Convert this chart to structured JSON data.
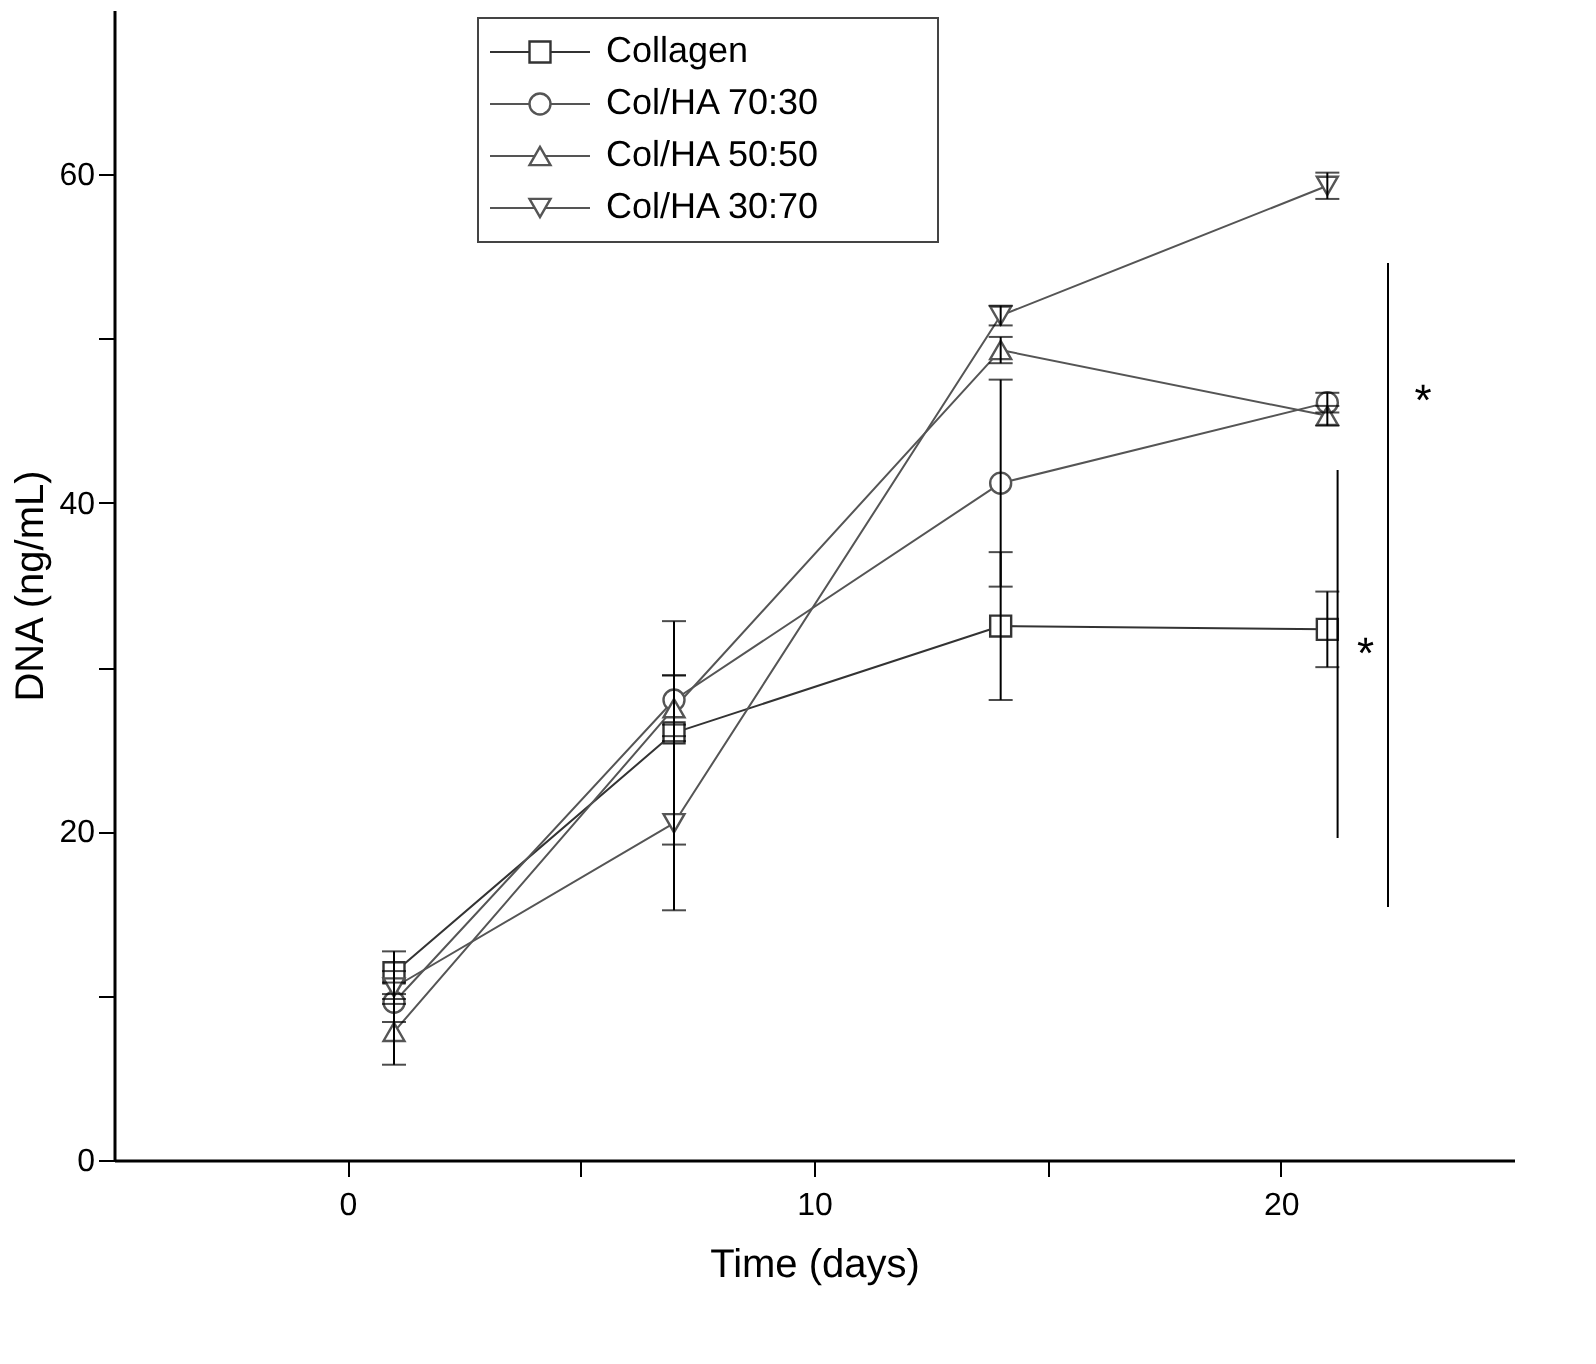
{
  "chart_data": {
    "type": "line",
    "xlabel": "Time (days)",
    "ylabel": "DNA (ng/mL)",
    "x": [
      1,
      7,
      14,
      21
    ],
    "series": [
      {
        "name": "Collagen",
        "color": "#333333",
        "marker": "square",
        "values": [
          11.4,
          26.0,
          32.5,
          32.3
        ],
        "errors": [
          1.3,
          6.8,
          4.5,
          2.3
        ]
      },
      {
        "name": "Col/HA 70:30",
        "color": "#555555",
        "marker": "circle",
        "values": [
          9.6,
          28.0,
          41.2,
          46.1
        ],
        "errors": [
          1.2,
          1.5,
          6.3,
          0.6
        ]
      },
      {
        "name": "Col/HA 50:50",
        "color": "#555555",
        "marker": "triangle",
        "values": [
          7.8,
          27.5,
          49.3,
          45.3
        ],
        "errors": [
          2.0,
          2.0,
          0.8,
          0.6
        ]
      },
      {
        "name": "Col/HA 30:70",
        "color": "#555555",
        "marker": "triangle-down",
        "values": [
          10.5,
          20.5,
          51.4,
          59.3
        ],
        "errors": [
          1.0,
          5.3,
          0.6,
          0.8
        ]
      }
    ],
    "xlim": [
      -5,
      25
    ],
    "xticks": [
      0,
      {
        "value": 5,
        "label": null
      },
      10,
      {
        "value": 15,
        "label": null
      },
      20
    ],
    "ylim": [
      0,
      70
    ],
    "yticks": [
      0,
      {
        "value": 10,
        "label": null
      },
      20,
      {
        "value": 30,
        "label": null
      },
      40,
      {
        "value": 50,
        "label": null
      },
      60
    ],
    "annotations": [
      "*",
      "*"
    ],
    "legend": "top",
    "grid": false,
    "line_style": "solid"
  }
}
